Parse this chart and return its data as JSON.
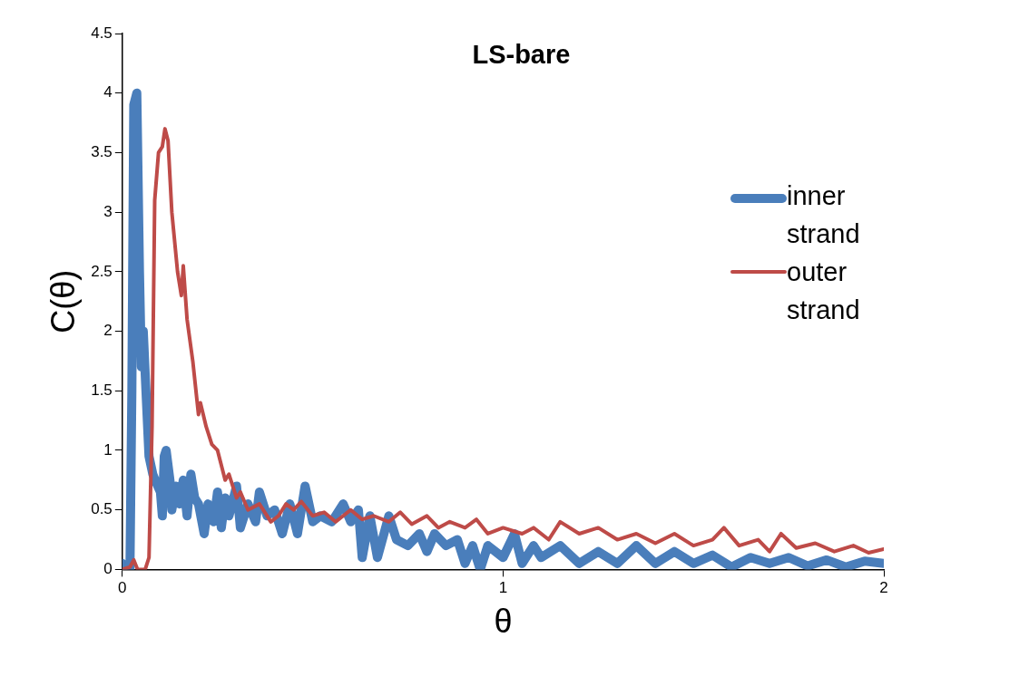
{
  "chart_data": {
    "type": "line",
    "title": "LS-bare",
    "xlabel": "θ",
    "ylabel": "C(θ)",
    "xlim": [
      0,
      2
    ],
    "xticks": [
      0,
      1,
      2
    ],
    "ylim": [
      0,
      4.5
    ],
    "yticks": [
      0,
      0.5,
      1,
      1.5,
      2,
      2.5,
      3,
      3.5,
      4,
      4.5
    ],
    "grid": false,
    "legend": "right",
    "marker": "none",
    "line_style": "solid",
    "series": [
      {
        "name": "inner strand",
        "color": "#4a7ebb",
        "x": [
          0,
          0.01,
          0.02,
          0.025,
          0.03,
          0.038,
          0.045,
          0.05,
          0.055,
          0.062,
          0.07,
          0.08,
          0.09,
          0.1,
          0.105,
          0.11,
          0.115,
          0.125,
          0.13,
          0.14,
          0.15,
          0.16,
          0.17,
          0.18,
          0.19,
          0.2,
          0.215,
          0.225,
          0.24,
          0.25,
          0.26,
          0.27,
          0.28,
          0.3,
          0.31,
          0.33,
          0.35,
          0.36,
          0.38,
          0.4,
          0.42,
          0.44,
          0.46,
          0.48,
          0.5,
          0.52,
          0.55,
          0.58,
          0.6,
          0.62,
          0.63,
          0.65,
          0.67,
          0.7,
          0.72,
          0.75,
          0.78,
          0.8,
          0.82,
          0.85,
          0.88,
          0.9,
          0.92,
          0.94,
          0.96,
          1,
          1.03,
          1.05,
          1.08,
          1.1,
          1.15,
          1.2,
          1.25,
          1.3,
          1.35,
          1.4,
          1.45,
          1.5,
          1.55,
          1.6,
          1.65,
          1.7,
          1.75,
          1.8,
          1.85,
          1.9,
          1.95,
          2
        ],
        "values": [
          0.05,
          0.02,
          0,
          1.5,
          3.9,
          4,
          2.5,
          1.7,
          2,
          1.5,
          0.95,
          0.8,
          0.72,
          0.65,
          0.45,
          0.95,
          1,
          0.75,
          0.5,
          0.7,
          0.55,
          0.75,
          0.45,
          0.8,
          0.6,
          0.55,
          0.3,
          0.55,
          0.4,
          0.65,
          0.35,
          0.6,
          0.45,
          0.7,
          0.35,
          0.55,
          0.4,
          0.65,
          0.45,
          0.5,
          0.3,
          0.55,
          0.3,
          0.7,
          0.4,
          0.45,
          0.4,
          0.55,
          0.4,
          0.5,
          0.1,
          0.45,
          0.1,
          0.45,
          0.25,
          0.2,
          0.3,
          0.15,
          0.3,
          0.2,
          0.25,
          0.05,
          0.2,
          0,
          0.2,
          0.1,
          0.3,
          0.05,
          0.2,
          0.1,
          0.2,
          0.05,
          0.15,
          0.05,
          0.2,
          0.05,
          0.15,
          0.05,
          0.12,
          0.02,
          0.1,
          0.05,
          0.1,
          0.03,
          0.08,
          0.02,
          0.07,
          0.05
        ]
      },
      {
        "name": "outer strand",
        "color": "#be4b48",
        "x": [
          0,
          0.02,
          0.03,
          0.04,
          0.06,
          0.07,
          0.078,
          0.085,
          0.095,
          0.105,
          0.112,
          0.12,
          0.13,
          0.145,
          0.155,
          0.16,
          0.17,
          0.185,
          0.2,
          0.205,
          0.22,
          0.235,
          0.25,
          0.27,
          0.28,
          0.3,
          0.31,
          0.33,
          0.36,
          0.39,
          0.41,
          0.43,
          0.45,
          0.47,
          0.5,
          0.53,
          0.56,
          0.58,
          0.6,
          0.63,
          0.66,
          0.7,
          0.73,
          0.76,
          0.8,
          0.83,
          0.86,
          0.9,
          0.93,
          0.96,
          1,
          1.05,
          1.08,
          1.12,
          1.15,
          1.2,
          1.25,
          1.3,
          1.35,
          1.4,
          1.45,
          1.5,
          1.55,
          1.58,
          1.62,
          1.67,
          1.7,
          1.73,
          1.77,
          1.82,
          1.87,
          1.92,
          1.96,
          2
        ],
        "values": [
          0,
          0.02,
          0.08,
          0,
          0,
          0.1,
          1.2,
          3.1,
          3.5,
          3.55,
          3.7,
          3.6,
          3,
          2.5,
          2.3,
          2.55,
          2.1,
          1.75,
          1.3,
          1.4,
          1.2,
          1.05,
          1,
          0.75,
          0.8,
          0.6,
          0.65,
          0.5,
          0.55,
          0.4,
          0.45,
          0.55,
          0.5,
          0.57,
          0.45,
          0.48,
          0.4,
          0.45,
          0.5,
          0.42,
          0.45,
          0.4,
          0.48,
          0.38,
          0.45,
          0.35,
          0.4,
          0.35,
          0.42,
          0.3,
          0.35,
          0.3,
          0.35,
          0.25,
          0.4,
          0.3,
          0.35,
          0.25,
          0.3,
          0.22,
          0.3,
          0.2,
          0.25,
          0.35,
          0.2,
          0.25,
          0.15,
          0.3,
          0.18,
          0.22,
          0.15,
          0.2,
          0.14,
          0.17
        ]
      }
    ]
  }
}
